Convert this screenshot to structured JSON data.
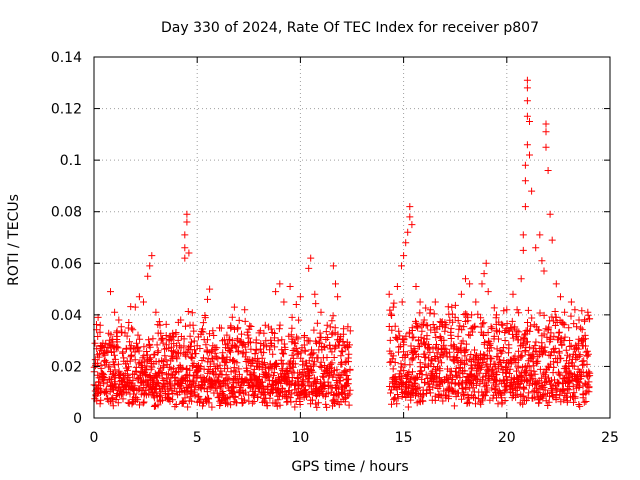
{
  "chart_data": {
    "type": "scatter",
    "title": "Day 330 of 2024, Rate Of TEC Index for receiver p807",
    "xlabel": "GPS time / hours",
    "ylabel": "ROTI / TECUs",
    "xlim": [
      0,
      25
    ],
    "ylim": [
      0,
      0.14
    ],
    "x_ticks": [
      0,
      5,
      10,
      15,
      20,
      25
    ],
    "x_tick_labels": [
      "0",
      "5",
      "10",
      "15",
      "20",
      "25"
    ],
    "y_ticks": [
      0,
      0.02,
      0.04,
      0.06,
      0.08,
      0.1,
      0.12,
      0.14
    ],
    "y_tick_labels": [
      "0",
      "0.02",
      "0.04",
      "0.06",
      "0.08",
      "0.1",
      "0.12",
      "0.14"
    ],
    "grid": true,
    "marker": "+",
    "color": "#ff0000",
    "series": [
      {
        "name": "ROTI",
        "points": [
          [
            0.05,
            0.029
          ],
          [
            0.2,
            0.039
          ],
          [
            0.3,
            0.036
          ],
          [
            0.5,
            0.022
          ],
          [
            0.8,
            0.018
          ],
          [
            0.8,
            0.049
          ],
          [
            1.0,
            0.041
          ],
          [
            1.2,
            0.038
          ],
          [
            1.5,
            0.033
          ],
          [
            1.8,
            0.028
          ],
          [
            2.0,
            0.043
          ],
          [
            2.2,
            0.047
          ],
          [
            2.4,
            0.045
          ],
          [
            2.6,
            0.055
          ],
          [
            2.7,
            0.059
          ],
          [
            2.8,
            0.063
          ],
          [
            3.0,
            0.041
          ],
          [
            3.2,
            0.036
          ],
          [
            3.5,
            0.032
          ],
          [
            3.8,
            0.024
          ],
          [
            4.0,
            0.028
          ],
          [
            4.2,
            0.038
          ],
          [
            4.4,
            0.062
          ],
          [
            4.4,
            0.066
          ],
          [
            4.4,
            0.071
          ],
          [
            4.5,
            0.076
          ],
          [
            4.5,
            0.079
          ],
          [
            4.6,
            0.064
          ],
          [
            4.8,
            0.036
          ],
          [
            5.0,
            0.028
          ],
          [
            5.3,
            0.037
          ],
          [
            5.5,
            0.046
          ],
          [
            5.6,
            0.05
          ],
          [
            5.8,
            0.032
          ],
          [
            6.0,
            0.023
          ],
          [
            6.5,
            0.027
          ],
          [
            6.8,
            0.043
          ],
          [
            7.0,
            0.026
          ],
          [
            7.3,
            0.042
          ],
          [
            7.5,
            0.031
          ],
          [
            7.8,
            0.025
          ],
          [
            8.0,
            0.033
          ],
          [
            8.3,
            0.036
          ],
          [
            8.6,
            0.029
          ],
          [
            8.8,
            0.049
          ],
          [
            9.0,
            0.052
          ],
          [
            9.2,
            0.045
          ],
          [
            9.5,
            0.051
          ],
          [
            9.6,
            0.039
          ],
          [
            9.8,
            0.044
          ],
          [
            10.0,
            0.047
          ],
          [
            10.2,
            0.032
          ],
          [
            10.4,
            0.058
          ],
          [
            10.5,
            0.062
          ],
          [
            10.7,
            0.048
          ],
          [
            11.0,
            0.041
          ],
          [
            11.3,
            0.036
          ],
          [
            11.6,
            0.059
          ],
          [
            11.7,
            0.052
          ],
          [
            11.8,
            0.047
          ],
          [
            12.0,
            0.026
          ],
          [
            12.2,
            0.018
          ],
          [
            14.3,
            0.048
          ],
          [
            14.5,
            0.043
          ],
          [
            14.7,
            0.051
          ],
          [
            14.9,
            0.059
          ],
          [
            15.0,
            0.063
          ],
          [
            15.1,
            0.068
          ],
          [
            15.2,
            0.072
          ],
          [
            15.3,
            0.078
          ],
          [
            15.3,
            0.082
          ],
          [
            15.4,
            0.075
          ],
          [
            15.6,
            0.051
          ],
          [
            15.8,
            0.045
          ],
          [
            16.0,
            0.038
          ],
          [
            16.3,
            0.042
          ],
          [
            16.5,
            0.035
          ],
          [
            16.8,
            0.031
          ],
          [
            17.0,
            0.037
          ],
          [
            17.3,
            0.028
          ],
          [
            17.5,
            0.039
          ],
          [
            17.8,
            0.048
          ],
          [
            18.0,
            0.054
          ],
          [
            18.2,
            0.052
          ],
          [
            18.5,
            0.045
          ],
          [
            18.8,
            0.052
          ],
          [
            18.9,
            0.056
          ],
          [
            19.0,
            0.06
          ],
          [
            19.1,
            0.049
          ],
          [
            19.5,
            0.04
          ],
          [
            19.8,
            0.036
          ],
          [
            20.0,
            0.042
          ],
          [
            20.3,
            0.048
          ],
          [
            20.5,
            0.042
          ],
          [
            20.7,
            0.054
          ],
          [
            20.8,
            0.065
          ],
          [
            20.8,
            0.071
          ],
          [
            20.9,
            0.082
          ],
          [
            20.9,
            0.092
          ],
          [
            20.9,
            0.098
          ],
          [
            21.0,
            0.106
          ],
          [
            21.0,
            0.117
          ],
          [
            21.0,
            0.123
          ],
          [
            21.0,
            0.128
          ],
          [
            21.0,
            0.131
          ],
          [
            21.1,
            0.115
          ],
          [
            21.1,
            0.102
          ],
          [
            21.2,
            0.088
          ],
          [
            21.4,
            0.066
          ],
          [
            21.6,
            0.071
          ],
          [
            21.7,
            0.061
          ],
          [
            21.8,
            0.057
          ],
          [
            21.9,
            0.105
          ],
          [
            21.9,
            0.111
          ],
          [
            21.9,
            0.114
          ],
          [
            22.0,
            0.096
          ],
          [
            22.1,
            0.079
          ],
          [
            22.2,
            0.069
          ],
          [
            22.4,
            0.052
          ],
          [
            22.6,
            0.047
          ],
          [
            22.8,
            0.041
          ],
          [
            23.0,
            0.035
          ],
          [
            23.3,
            0.042
          ],
          [
            23.5,
            0.038
          ],
          [
            23.7,
            0.028
          ],
          [
            23.9,
            0.024
          ]
        ],
        "dense_bands": [
          {
            "x_start": 0.0,
            "x_end": 12.4,
            "y_base": 0.004,
            "y_mid": 0.014,
            "y_spread": 0.012,
            "step": 0.035
          },
          {
            "x_start": 14.3,
            "x_end": 24.0,
            "y_base": 0.004,
            "y_mid": 0.016,
            "y_spread": 0.014,
            "step": 0.035
          }
        ]
      }
    ]
  }
}
